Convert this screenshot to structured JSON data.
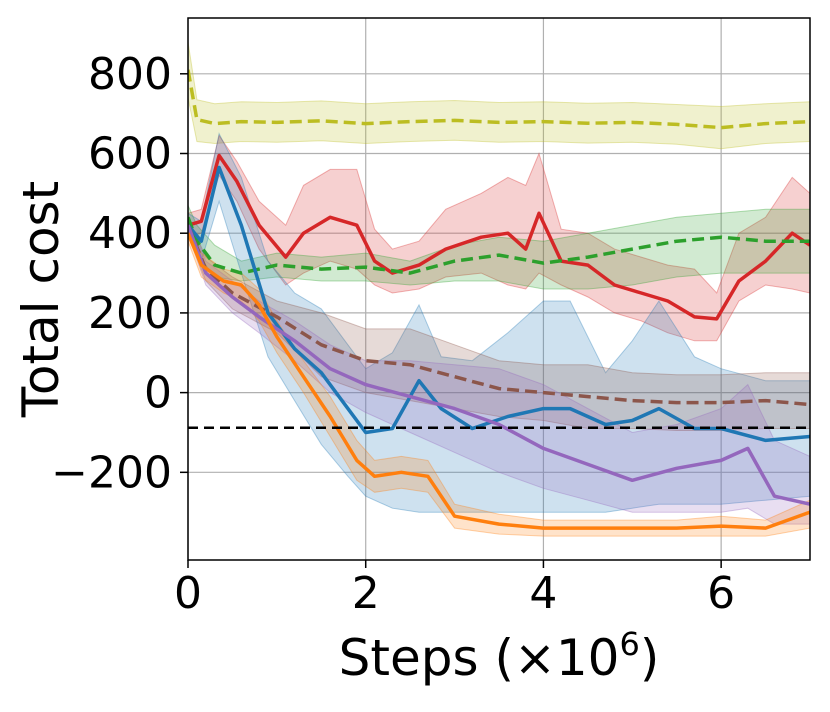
{
  "chart_data": {
    "type": "line",
    "xlabel": "Steps (×10",
    "xlabel_exponent": "6",
    "xlabel_close": ")",
    "ylabel": "Total cost",
    "xlim": [
      0,
      7
    ],
    "ylim": [
      -420,
      940
    ],
    "grid": true,
    "x_ticks": [
      0,
      2,
      4,
      6
    ],
    "x_tick_labels": [
      "0",
      "2",
      "4",
      "6"
    ],
    "y_ticks": [
      800,
      600,
      400,
      200,
      0,
      -200
    ],
    "y_tick_labels": [
      "800",
      "600",
      "400",
      "200",
      "0",
      "−200"
    ],
    "reference_line": {
      "y": -88,
      "color": "#000000",
      "dashed": true
    },
    "series": [
      {
        "color": "#bcbd22",
        "dashed": true,
        "x": [
          0,
          0.1,
          0.3,
          0.6,
          1,
          1.5,
          2,
          2.5,
          3,
          3.5,
          4,
          4.5,
          5,
          5.5,
          6,
          6.5,
          7
        ],
        "y": [
          810,
          685,
          675,
          680,
          678,
          682,
          675,
          680,
          683,
          678,
          680,
          676,
          678,
          673,
          665,
          675,
          680
        ],
        "lower": [
          740,
          630,
          625,
          630,
          628,
          632,
          625,
          630,
          633,
          628,
          630,
          626,
          628,
          623,
          612,
          625,
          630
        ],
        "upper": [
          880,
          735,
          725,
          730,
          728,
          732,
          725,
          730,
          733,
          728,
          730,
          726,
          728,
          723,
          718,
          725,
          730
        ]
      },
      {
        "color": "#d62728",
        "dashed": false,
        "x": [
          0,
          0.15,
          0.35,
          0.55,
          0.8,
          1.1,
          1.3,
          1.6,
          1.9,
          2.1,
          2.3,
          2.6,
          2.9,
          3.3,
          3.6,
          3.8,
          3.95,
          4.2,
          4.5,
          4.8,
          5.1,
          5.4,
          5.7,
          5.95,
          6.2,
          6.5,
          6.8,
          7
        ],
        "y": [
          420,
          430,
          595,
          530,
          420,
          340,
          400,
          440,
          420,
          330,
          300,
          320,
          360,
          390,
          400,
          360,
          450,
          330,
          320,
          270,
          250,
          230,
          190,
          185,
          280,
          330,
          400,
          370
        ],
        "lower": [
          390,
          400,
          545,
          480,
          360,
          270,
          300,
          330,
          310,
          270,
          250,
          260,
          290,
          300,
          270,
          260,
          300,
          270,
          240,
          200,
          180,
          150,
          130,
          130,
          230,
          270,
          260,
          250
        ],
        "upper": [
          450,
          460,
          645,
          580,
          480,
          420,
          520,
          560,
          560,
          410,
          360,
          380,
          460,
          500,
          540,
          520,
          600,
          410,
          400,
          360,
          340,
          320,
          310,
          250,
          400,
          440,
          540,
          500
        ]
      },
      {
        "color": "#2ca02c",
        "dashed": true,
        "x": [
          0,
          0.1,
          0.3,
          0.6,
          1,
          1.5,
          2,
          2.5,
          3,
          3.5,
          4,
          4.5,
          5,
          5.5,
          6,
          6.5,
          7
        ],
        "y": [
          440,
          380,
          320,
          300,
          320,
          310,
          315,
          300,
          330,
          345,
          325,
          340,
          360,
          380,
          390,
          380,
          380
        ],
        "lower": [
          410,
          350,
          290,
          280,
          290,
          280,
          280,
          270,
          280,
          280,
          260,
          260,
          270,
          290,
          300,
          300,
          300
        ],
        "upper": [
          470,
          420,
          370,
          330,
          350,
          340,
          350,
          330,
          370,
          390,
          380,
          400,
          420,
          440,
          450,
          460,
          460
        ]
      },
      {
        "color": "#1f77b4",
        "dashed": false,
        "x": [
          0,
          0.15,
          0.35,
          0.6,
          0.9,
          1.2,
          1.5,
          1.8,
          2.0,
          2.3,
          2.6,
          2.85,
          3.2,
          3.6,
          4.0,
          4.3,
          4.7,
          5.0,
          5.3,
          5.7,
          6.0,
          6.5,
          7
        ],
        "y": [
          420,
          380,
          565,
          420,
          200,
          110,
          50,
          -40,
          -100,
          -90,
          30,
          -40,
          -90,
          -60,
          -40,
          -40,
          -80,
          -70,
          -40,
          -90,
          -90,
          -120,
          -110
        ],
        "lower": [
          390,
          330,
          480,
          300,
          90,
          -20,
          -130,
          -210,
          -260,
          -290,
          -300,
          -300,
          -300,
          -300,
          -300,
          -300,
          -300,
          -290,
          -280,
          -280,
          -280,
          -270,
          -260
        ],
        "upper": [
          450,
          430,
          650,
          540,
          330,
          250,
          210,
          120,
          60,
          100,
          220,
          90,
          80,
          150,
          230,
          230,
          50,
          130,
          230,
          90,
          60,
          30,
          30
        ]
      },
      {
        "color": "#8c564b",
        "dashed": true,
        "x": [
          0,
          0.2,
          0.5,
          1,
          1.5,
          2,
          2.5,
          3,
          3.5,
          4,
          4.5,
          5,
          5.5,
          6,
          6.5,
          7
        ],
        "y": [
          420,
          310,
          250,
          190,
          120,
          80,
          70,
          40,
          10,
          0,
          -10,
          -20,
          -25,
          -25,
          -20,
          -30
        ],
        "lower": [
          400,
          280,
          210,
          150,
          40,
          0,
          -20,
          -40,
          -60,
          -70,
          -90,
          -90,
          -95,
          -95,
          -90,
          -90
        ],
        "upper": [
          440,
          340,
          290,
          230,
          200,
          160,
          160,
          120,
          80,
          70,
          70,
          50,
          45,
          45,
          50,
          50
        ]
      },
      {
        "color": "#9467bd",
        "dashed": false,
        "x": [
          0,
          0.2,
          0.5,
          0.8,
          1.2,
          1.6,
          2.0,
          2.5,
          3.0,
          3.5,
          4.0,
          4.5,
          5.0,
          5.5,
          6.0,
          6.3,
          6.6,
          7
        ],
        "y": [
          420,
          300,
          240,
          190,
          130,
          60,
          20,
          -10,
          -40,
          -80,
          -140,
          -180,
          -220,
          -190,
          -170,
          -140,
          -260,
          -280
        ],
        "lower": [
          400,
          270,
          200,
          150,
          80,
          0,
          -50,
          -100,
          -150,
          -200,
          -240,
          -270,
          -300,
          -300,
          -300,
          -290,
          -330,
          -330
        ],
        "upper": [
          440,
          330,
          280,
          230,
          180,
          120,
          80,
          80,
          70,
          60,
          20,
          -40,
          -100,
          -80,
          -40,
          20,
          -120,
          -160
        ]
      },
      {
        "color": "#ff7f0e",
        "dashed": false,
        "x": [
          0,
          0.15,
          0.4,
          0.6,
          0.8,
          1.0,
          1.3,
          1.6,
          1.9,
          2.1,
          2.4,
          2.7,
          3.0,
          3.5,
          4.0,
          4.5,
          5.0,
          5.5,
          6.0,
          6.5,
          7
        ],
        "y": [
          400,
          320,
          280,
          270,
          220,
          140,
          40,
          -60,
          -170,
          -210,
          -200,
          -210,
          -310,
          -330,
          -340,
          -340,
          -340,
          -340,
          -335,
          -340,
          -300
        ],
        "lower": [
          380,
          290,
          250,
          230,
          180,
          100,
          0,
          -110,
          -220,
          -250,
          -240,
          -250,
          -340,
          -355,
          -360,
          -360,
          -360,
          -360,
          -360,
          -360,
          -340
        ],
        "upper": [
          420,
          350,
          310,
          300,
          260,
          180,
          80,
          -10,
          -120,
          -170,
          -160,
          -170,
          -280,
          -305,
          -320,
          -320,
          -320,
          -320,
          -310,
          -320,
          -270
        ]
      }
    ]
  }
}
